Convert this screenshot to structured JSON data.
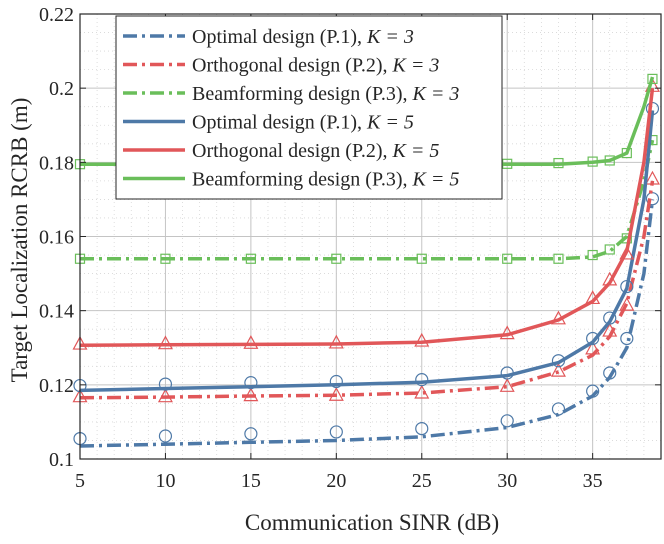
{
  "chart_data": {
    "type": "line",
    "title": "",
    "xlabel": "Communication SINR (dB)",
    "ylabel": "Target Localization RCRB (m)",
    "xlim": [
      5,
      39
    ],
    "ylim": [
      0.1,
      0.22
    ],
    "xticks": [
      5,
      10,
      15,
      20,
      25,
      30,
      35
    ],
    "yticks": [
      0.1,
      0.12,
      0.14,
      0.16,
      0.18,
      0.2,
      0.22
    ],
    "ytick_labels": [
      "0.1",
      "0.12",
      "0.14",
      "0.16",
      "0.18",
      "0.2",
      "0.22"
    ],
    "grid": true,
    "legend_position": "top-left",
    "colors": {
      "blue": "#4e79a7",
      "red": "#e15759",
      "green": "#6abe5a"
    },
    "series": [
      {
        "name": "Optimal design (P.1), K = 3",
        "label_main": "Optimal design (P.1), ",
        "label_k": "K = 3",
        "color": "#4e79a7",
        "dash": "dashdot",
        "line": {
          "x": [
            5,
            10,
            15,
            20,
            25,
            30,
            33,
            35,
            36,
            37,
            38,
            38.5
          ],
          "y": [
            0.1035,
            0.104,
            0.1045,
            0.105,
            0.106,
            0.1085,
            0.112,
            0.117,
            0.122,
            0.13,
            0.15,
            0.17
          ]
        },
        "markers": {
          "symbol": "circle",
          "x": [
            5,
            10,
            15,
            20,
            25,
            30,
            33,
            35,
            36,
            37,
            38.5
          ],
          "y": [
            0.1055,
            0.1062,
            0.1068,
            0.1073,
            0.1082,
            0.1103,
            0.1135,
            0.1183,
            0.1232,
            0.1325,
            0.1702
          ]
        }
      },
      {
        "name": "Orthogonal design (P.2), K = 3",
        "label_main": "Orthogonal design (P.2), ",
        "label_k": "K = 3",
        "color": "#e15759",
        "dash": "dashdot",
        "line": {
          "x": [
            5,
            10,
            15,
            20,
            25,
            30,
            33,
            35,
            36,
            37,
            38,
            38.5
          ],
          "y": [
            0.1165,
            0.1167,
            0.117,
            0.1172,
            0.1178,
            0.1195,
            0.1235,
            0.128,
            0.133,
            0.142,
            0.16,
            0.175
          ]
        },
        "markers": {
          "symbol": "triangle",
          "x": [
            5,
            10,
            15,
            20,
            25,
            30,
            33,
            35,
            36,
            37,
            38.5
          ],
          "y": [
            0.1168,
            0.1168,
            0.1171,
            0.1172,
            0.1178,
            0.1196,
            0.1237,
            0.1297,
            0.1345,
            0.1415,
            0.1755
          ]
        }
      },
      {
        "name": "Beamforming design (P.3), K = 3",
        "label_main": "Beamforming design (P.3), ",
        "label_k": "K = 3",
        "color": "#6abe5a",
        "dash": "dashdot",
        "line": {
          "x": [
            5,
            10,
            15,
            20,
            25,
            30,
            33,
            35,
            36,
            37,
            38,
            38.5
          ],
          "y": [
            0.154,
            0.154,
            0.154,
            0.154,
            0.154,
            0.154,
            0.154,
            0.1545,
            0.156,
            0.16,
            0.175,
            0.186
          ]
        },
        "markers": {
          "symbol": "square",
          "x": [
            5,
            10,
            15,
            20,
            25,
            30,
            33,
            35,
            36,
            37,
            38.5
          ],
          "y": [
            0.154,
            0.154,
            0.154,
            0.154,
            0.154,
            0.154,
            0.154,
            0.155,
            0.1565,
            0.1595,
            0.186
          ]
        }
      },
      {
        "name": "Optimal design (P.1), K = 5",
        "label_main": "Optimal design (P.1), ",
        "label_k": "K = 5",
        "color": "#4e79a7",
        "dash": "solid",
        "line": {
          "x": [
            5,
            10,
            15,
            20,
            25,
            30,
            33,
            35,
            36,
            37,
            38,
            38.5
          ],
          "y": [
            0.1185,
            0.119,
            0.1195,
            0.12,
            0.1207,
            0.1225,
            0.126,
            0.1315,
            0.137,
            0.146,
            0.17,
            0.194
          ]
        },
        "markers": {
          "symbol": "circle",
          "x": [
            5,
            10,
            15,
            20,
            25,
            30,
            33,
            35,
            36,
            37,
            38.5
          ],
          "y": [
            0.1198,
            0.1202,
            0.1206,
            0.1209,
            0.1214,
            0.1232,
            0.1265,
            0.1325,
            0.138,
            0.1465,
            0.1945
          ]
        }
      },
      {
        "name": "Orthogonal design (P.2), K = 5",
        "label_main": "Orthogonal design (P.2), ",
        "label_k": "K = 5",
        "color": "#e15759",
        "dash": "solid",
        "line": {
          "x": [
            5,
            10,
            15,
            20,
            25,
            30,
            33,
            35,
            36,
            37,
            38,
            38.5
          ],
          "y": [
            0.1307,
            0.1308,
            0.1309,
            0.131,
            0.1315,
            0.1335,
            0.1375,
            0.1425,
            0.1475,
            0.156,
            0.18,
            0.2
          ]
        },
        "markers": {
          "symbol": "triangle",
          "x": [
            5,
            10,
            15,
            20,
            25,
            30,
            33,
            35,
            36,
            37,
            38.5
          ],
          "y": [
            0.131,
            0.1311,
            0.1312,
            0.1313,
            0.1318,
            0.1338,
            0.1378,
            0.1433,
            0.1483,
            0.1553,
            0.2005
          ]
        }
      },
      {
        "name": "Beamforming design (P.3), K = 5",
        "label_main": "Beamforming design (P.3), ",
        "label_k": "K = 5",
        "color": "#6abe5a",
        "dash": "solid",
        "line": {
          "x": [
            5,
            10,
            15,
            20,
            25,
            30,
            33,
            35,
            36,
            37,
            38,
            38.5
          ],
          "y": [
            0.1795,
            0.1795,
            0.1795,
            0.1795,
            0.1795,
            0.1795,
            0.1795,
            0.18,
            0.1805,
            0.1825,
            0.195,
            0.203
          ]
        },
        "markers": {
          "symbol": "square",
          "x": [
            5,
            10,
            15,
            20,
            25,
            30,
            33,
            35,
            36,
            37,
            38.5
          ],
          "y": [
            0.1795,
            0.1795,
            0.1795,
            0.1795,
            0.1795,
            0.1796,
            0.1798,
            0.1802,
            0.1805,
            0.1825,
            0.2025
          ]
        }
      }
    ]
  }
}
